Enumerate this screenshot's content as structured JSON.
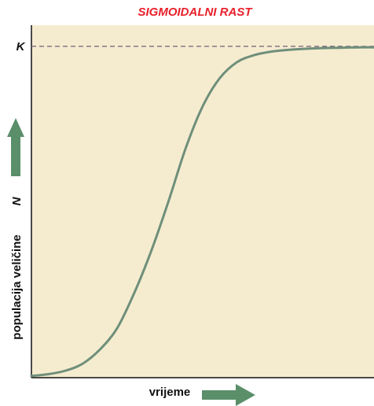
{
  "chart_data": {
    "type": "line",
    "title": "SIGMOIDALNI RAST",
    "xlabel": "vrijeme",
    "ylabel": "populacija veličine",
    "ylabel_symbol": "N",
    "carrying_capacity_label": "K",
    "xlim": [
      0,
      10
    ],
    "ylim": [
      0,
      1
    ],
    "K": 0.94,
    "grid": false,
    "series": [
      {
        "x": [
          0,
          0.5,
          1,
          1.5,
          2,
          2.5,
          3,
          3.5,
          4,
          4.5,
          5,
          5.5,
          6,
          6.5,
          7,
          7.5,
          8,
          8.5,
          9,
          9.5,
          10
        ],
        "y": [
          0.005,
          0.01,
          0.02,
          0.04,
          0.08,
          0.14,
          0.24,
          0.36,
          0.5,
          0.65,
          0.77,
          0.85,
          0.895,
          0.915,
          0.925,
          0.93,
          0.933,
          0.935,
          0.936,
          0.937,
          0.937
        ]
      }
    ],
    "colors": {
      "plot_background": "#f5ecd0",
      "curve": "#6f8f7a",
      "k_line": "#7a5a7a",
      "arrow": "#5a8f6a",
      "title": "#e8202a",
      "axis": "#111111"
    }
  }
}
